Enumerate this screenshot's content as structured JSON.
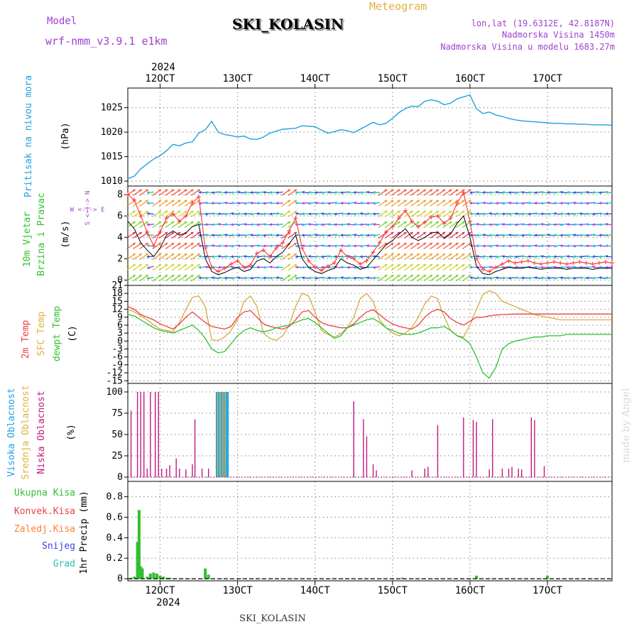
{
  "header": {
    "model_label": "Model",
    "model_name": "wrf-nmm_v3.9.1 e1km",
    "station": "SKI_KOLASIN",
    "meteogram": "Meteogram",
    "lonlat": "lon,lat (19.6312E, 42.8187N)",
    "elev": "Nadmorska Visina 1450m",
    "elev_model": "Nadmorska Visina u modelu 1683.27m",
    "credit": "made by Angel",
    "footer_station": "SKI_KOLASIN"
  },
  "colors": {
    "pressure": "#1fa0e0",
    "model": "#a040d0",
    "gust": "#ff4040",
    "wind_mean": "#000000",
    "temp2m": "#e84040",
    "sfc_temp": "#d8a840",
    "dewpt": "#30c030",
    "cloud_high": "#1fa0e0",
    "cloud_mid": "#e0b040",
    "cloud_low": "#c01880",
    "precip_total": "#30c030",
    "precip_conv": "#e84040",
    "precip_frz": "#ff8030",
    "snow": "#4040e0",
    "grad": "#20c0c0"
  },
  "time_axis": {
    "year": "2024",
    "start_hour_from_12oct": -10,
    "end_hour_from_12oct": 140,
    "ticks": [
      {
        "label": "12OCT",
        "hour": 0
      },
      {
        "label": "13OCT",
        "hour": 24
      },
      {
        "label": "14OCT",
        "hour": 48
      },
      {
        "label": "15OCT",
        "hour": 72
      },
      {
        "label": "16OCT",
        "hour": 96
      },
      {
        "label": "17OCT",
        "hour": 120
      }
    ]
  },
  "chart_data": [
    {
      "type": "line",
      "panel": "pressure",
      "ylabel": "(hPa)",
      "side_label": "Pritisak na nivou mora",
      "ylim": [
        1009,
        1029
      ],
      "yticks": [
        1010,
        1015,
        1020,
        1025
      ],
      "x_hours": [
        -10,
        -8,
        -6,
        -4,
        -2,
        0,
        2,
        4,
        6,
        8,
        10,
        12,
        14,
        16,
        18,
        20,
        22,
        24,
        26,
        28,
        30,
        32,
        34,
        36,
        38,
        40,
        42,
        44,
        46,
        48,
        50,
        52,
        54,
        56,
        58,
        60,
        62,
        64,
        66,
        68,
        70,
        72,
        74,
        76,
        78,
        80,
        82,
        84,
        86,
        88,
        90,
        92,
        94,
        96,
        98,
        100,
        102,
        104,
        106,
        108,
        110,
        112,
        114,
        116,
        118,
        120,
        122,
        124,
        126,
        128,
        130,
        132,
        134,
        136,
        138,
        140
      ],
      "values": [
        1010.5,
        1011,
        1012.5,
        1013.5,
        1014.5,
        1015.2,
        1016.2,
        1017.5,
        1017.2,
        1017.8,
        1018,
        1019.8,
        1020.5,
        1022.2,
        1020,
        1019.5,
        1019.3,
        1019,
        1019.2,
        1018.6,
        1018.5,
        1019,
        1019.8,
        1020.2,
        1020.6,
        1020.7,
        1020.8,
        1021.3,
        1021.2,
        1021.1,
        1020.4,
        1019.8,
        1020.1,
        1020.5,
        1020.3,
        1019.9,
        1020.6,
        1021.3,
        1022,
        1021.5,
        1021.8,
        1022.8,
        1024,
        1024.8,
        1025.3,
        1025.2,
        1026.3,
        1026.6,
        1026.3,
        1025.6,
        1025.9,
        1026.8,
        1027.2,
        1027.6,
        1024.8,
        1023.8,
        1024.1,
        1023.5,
        1023.2,
        1022.8,
        1022.5,
        1022.3,
        1022.2,
        1022.1,
        1022,
        1021.9,
        1021.8,
        1021.8,
        1021.7,
        1021.7,
        1021.6,
        1021.6,
        1021.5,
        1021.5,
        1021.5,
        1021.4
      ]
    },
    {
      "type": "line",
      "panel": "wind",
      "ylabel": "(m/s)",
      "side_label_1": "10m Vjetar",
      "side_label_2": "Brzina i Pravac",
      "compass": "W <-|-> E",
      "compass_v": "S <-|-> N",
      "ylim": [
        -0.5,
        8.8
      ],
      "yticks": [
        0,
        2,
        4,
        6,
        8
      ],
      "x_hours": [
        -10,
        -8,
        -6,
        -4,
        -2,
        0,
        2,
        4,
        6,
        8,
        10,
        12,
        14,
        16,
        18,
        20,
        22,
        24,
        26,
        28,
        30,
        32,
        34,
        36,
        38,
        40,
        42,
        44,
        46,
        48,
        50,
        52,
        54,
        56,
        58,
        60,
        62,
        64,
        66,
        68,
        70,
        72,
        74,
        76,
        78,
        80,
        82,
        84,
        86,
        88,
        90,
        92,
        94,
        96,
        98,
        100,
        102,
        104,
        106,
        108,
        110,
        112,
        114,
        116,
        118,
        120,
        122,
        124,
        126,
        128,
        130,
        132,
        134,
        136,
        138,
        140
      ],
      "series": [
        {
          "name": "gust",
          "values": [
            8,
            7.5,
            6,
            4.5,
            3.2,
            4.5,
            5.8,
            6.2,
            5.5,
            6,
            7.2,
            7.8,
            3,
            1.2,
            0.8,
            1.1,
            1.5,
            1.8,
            1.2,
            1.4,
            2.5,
            2.8,
            2.2,
            3,
            3.5,
            4.6,
            5.8,
            3,
            1.8,
            1.2,
            0.9,
            1.3,
            1.6,
            2.8,
            2.2,
            2,
            1.5,
            1.8,
            2.6,
            3.5,
            4.5,
            5,
            5.8,
            6.5,
            5.5,
            5,
            5.4,
            5.9,
            6,
            5.3,
            5.8,
            7.2,
            8.2,
            5.5,
            2,
            1,
            0.8,
            1.2,
            1.5,
            1.8,
            1.6,
            1.7,
            1.8,
            1.6,
            1.5,
            1.6,
            1.7,
            1.6,
            1.5,
            1.6,
            1.7,
            1.6,
            1.5,
            1.6,
            1.7,
            1.6
          ]
        },
        {
          "name": "mean",
          "values": [
            5.5,
            4.8,
            3.5,
            2.8,
            2.2,
            3,
            4.2,
            4.6,
            4.2,
            4.4,
            5,
            5.2,
            2,
            0.8,
            0.5,
            0.7,
            1,
            1.2,
            0.8,
            1,
            1.8,
            2,
            1.6,
            2.2,
            2.6,
            3.4,
            4.2,
            2,
            1.2,
            0.8,
            0.6,
            0.9,
            1.1,
            2,
            1.6,
            1.4,
            1,
            1.2,
            1.9,
            2.6,
            3.3,
            3.7,
            4.3,
            4.8,
            4,
            3.7,
            4,
            4.4,
            4.5,
            3.9,
            4.3,
            5.3,
            6,
            4,
            1.3,
            0.6,
            0.5,
            0.8,
            1,
            1.2,
            1.1,
            1.1,
            1.2,
            1.1,
            1,
            1.1,
            1.1,
            1.1,
            1,
            1.1,
            1.1,
            1.1,
            1,
            1.1,
            1.1,
            1.1
          ]
        }
      ]
    },
    {
      "type": "line",
      "panel": "temperature",
      "ylabel": "(C)",
      "side_label_1": "2m Temp",
      "side_label_2": "SFC Temp",
      "side_label_3": "dewpt Temp",
      "ylim": [
        -16,
        21
      ],
      "yticks": [
        -15,
        -12,
        -9,
        -6,
        -3,
        0,
        3,
        6,
        9,
        12,
        15,
        18,
        21
      ],
      "x_hours": [
        -10,
        -8,
        -6,
        -4,
        -2,
        0,
        2,
        4,
        6,
        8,
        10,
        12,
        14,
        16,
        18,
        20,
        22,
        24,
        26,
        28,
        30,
        32,
        34,
        36,
        38,
        40,
        42,
        44,
        46,
        48,
        50,
        52,
        54,
        56,
        58,
        60,
        62,
        64,
        66,
        68,
        70,
        72,
        74,
        76,
        78,
        80,
        82,
        84,
        86,
        88,
        90,
        92,
        94,
        96,
        98,
        100,
        102,
        104,
        106,
        108,
        110,
        112,
        114,
        116,
        118,
        120,
        122,
        124,
        126,
        128,
        130,
        132,
        134,
        136,
        138,
        140
      ],
      "series": [
        {
          "name": "2m",
          "values": [
            13,
            12,
            10,
            9,
            8,
            6.5,
            5.5,
            4.5,
            6.5,
            9,
            11,
            9,
            7,
            5.5,
            5,
            4.5,
            5.5,
            9,
            11,
            11.5,
            9,
            6.5,
            5.5,
            5,
            4.5,
            5.5,
            8,
            11,
            11.5,
            9,
            7,
            6,
            5.5,
            5,
            5,
            6.5,
            9,
            11,
            11.8,
            10,
            8,
            6.5,
            5.5,
            5,
            4.5,
            6,
            9,
            11,
            12,
            11,
            8.5,
            7,
            6,
            7.5,
            9,
            9,
            9.5,
            9.8,
            10,
            10.1,
            10.2,
            10.2,
            10.2,
            10.2,
            10.2,
            10.2,
            10.2,
            10.2,
            10.2,
            10.2,
            10.2,
            10.2,
            10.2,
            10.2,
            10.2,
            10.2
          ]
        },
        {
          "name": "SFC",
          "values": [
            12,
            11,
            9.5,
            8,
            6,
            4.5,
            4,
            3.5,
            7,
            12,
            16.5,
            17,
            13,
            0.5,
            0.2,
            1.5,
            4,
            8,
            15,
            17,
            13,
            3,
            1,
            0.3,
            2,
            6,
            13,
            18,
            17,
            11,
            4,
            2.5,
            1.5,
            2.8,
            5,
            9,
            16,
            18,
            15,
            8,
            5,
            3,
            2,
            3,
            5,
            9,
            14,
            17,
            16,
            9,
            4,
            2,
            1.5,
            6,
            12,
            17.5,
            19,
            18,
            15,
            14,
            13,
            12,
            11,
            10,
            9.5,
            9,
            8.5,
            8,
            8,
            8,
            8,
            8,
            8,
            8,
            8,
            8
          ]
        },
        {
          "name": "dewpt",
          "values": [
            10,
            9.5,
            8,
            6.5,
            5,
            4,
            3.5,
            3,
            4,
            5,
            6,
            4,
            1,
            -3,
            -4.5,
            -4,
            -1,
            2,
            4,
            5,
            4,
            3.5,
            4,
            5,
            5.5,
            6,
            7,
            8,
            8.5,
            7,
            5,
            3,
            1,
            2,
            5,
            6,
            7,
            8,
            8.5,
            7,
            5,
            4,
            3,
            2.5,
            2.5,
            3,
            4,
            5,
            5,
            5.5,
            4,
            2,
            1,
            -1,
            -6,
            -12,
            -14,
            -10,
            -3,
            -1,
            0,
            0.5,
            1,
            1.5,
            1.5,
            2,
            2,
            2,
            2.5,
            2.5,
            2.5,
            2.5,
            2.5,
            2.5,
            2.5,
            2.5
          ]
        }
      ]
    },
    {
      "type": "bar",
      "panel": "cloud",
      "ylabel": "(%)",
      "side_label_1": "Visoka Oblacnost",
      "side_label_2": "Srednja Oblacnost",
      "side_label_3": "Niska Oblacnost",
      "ylim": [
        -5,
        110
      ],
      "yticks": [
        0,
        25,
        50,
        75,
        100
      ],
      "low_bars": [
        [
          -9,
          78
        ],
        [
          -7,
          100
        ],
        [
          -6,
          100
        ],
        [
          -5,
          100
        ],
        [
          -4,
          10
        ],
        [
          -3,
          100
        ],
        [
          -1.5,
          100
        ],
        [
          -0.5,
          100
        ],
        [
          0.5,
          10
        ],
        [
          2,
          10
        ],
        [
          3,
          14
        ],
        [
          5,
          22
        ],
        [
          6,
          10
        ],
        [
          8,
          9
        ],
        [
          10,
          15
        ],
        [
          10.8,
          68
        ],
        [
          13,
          10
        ],
        [
          15,
          10
        ],
        [
          60,
          89
        ],
        [
          63,
          68
        ],
        [
          64,
          48
        ],
        [
          66,
          15
        ],
        [
          67,
          8
        ],
        [
          78,
          8
        ],
        [
          82,
          10
        ],
        [
          83,
          12
        ],
        [
          86,
          61
        ],
        [
          94,
          70
        ],
        [
          97,
          67
        ],
        [
          98,
          65
        ],
        [
          102,
          9
        ],
        [
          103,
          68
        ],
        [
          106,
          10
        ],
        [
          108,
          10
        ],
        [
          109,
          12
        ],
        [
          111,
          10
        ],
        [
          112,
          9
        ],
        [
          115,
          70
        ],
        [
          116,
          67
        ],
        [
          119,
          13
        ]
      ],
      "high_block": [
        17.5,
        21
      ],
      "mid_block": [
        17.8,
        20.4
      ]
    },
    {
      "type": "bar",
      "panel": "precip",
      "ylabel": "1hr Precip (mm)",
      "side_label_1": "Ukupna Kisa",
      "side_label_2": "Konvek.Kisa",
      "side_label_3": "Zaledj.Kisa",
      "side_label_4": "Snijeg",
      "side_label_5": "Grad",
      "ylim": [
        -0.02,
        0.95
      ],
      "yticks": [
        0,
        0.2,
        0.4,
        0.6,
        0.8
      ],
      "bars": [
        [
          -9,
          0.01
        ],
        [
          -8,
          0.02
        ],
        [
          -7,
          0.36
        ],
        [
          -6.5,
          0.67
        ],
        [
          -6,
          0.12
        ],
        [
          -5.5,
          0.1
        ],
        [
          -4,
          0.02
        ],
        [
          -3,
          0.05
        ],
        [
          -2,
          0.06
        ],
        [
          -1,
          0.05
        ],
        [
          0,
          0.03
        ],
        [
          1,
          0.02
        ],
        [
          2,
          0.01
        ],
        [
          3,
          0.01
        ],
        [
          14,
          0.1
        ],
        [
          15,
          0.04
        ],
        [
          75,
          0.01
        ],
        [
          98,
          0.03
        ],
        [
          120,
          0.03
        ]
      ]
    }
  ]
}
